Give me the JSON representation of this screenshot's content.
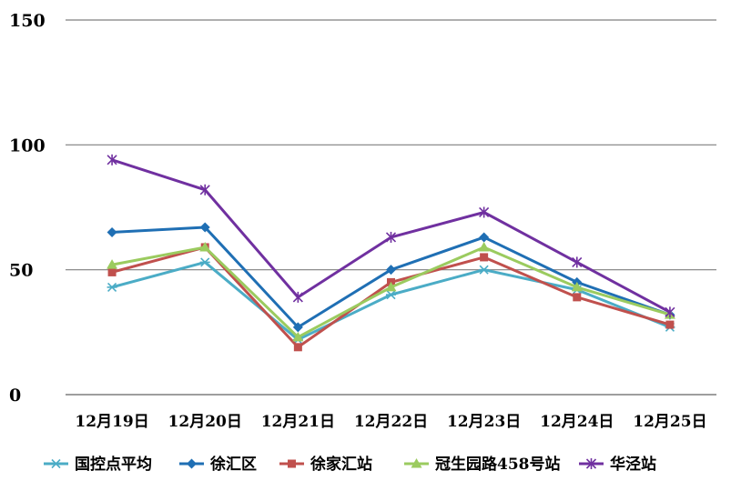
{
  "chart_data": {
    "type": "line",
    "title": "",
    "xlabel": "",
    "ylabel": "",
    "ylim": [
      0,
      150
    ],
    "yticks": [
      0,
      50,
      100,
      150
    ],
    "grid": true,
    "legend_position": "bottom",
    "categories": [
      "12月19日",
      "12月20日",
      "12月21日",
      "12月22日",
      "12月23日",
      "12月24日",
      "12月25日"
    ],
    "series": [
      {
        "name": "国控点平均",
        "color": "#4bacc6",
        "marker": "star",
        "values": [
          43,
          53,
          22,
          40,
          50,
          42,
          27
        ]
      },
      {
        "name": "徐汇区",
        "color": "#1f6fb4",
        "marker": "diamond",
        "values": [
          65,
          67,
          27,
          50,
          63,
          45,
          32
        ]
      },
      {
        "name": "徐家汇站",
        "color": "#c0504d",
        "marker": "square",
        "values": [
          49,
          59,
          19,
          45,
          55,
          39,
          28
        ]
      },
      {
        "name": "冠生园路458号站",
        "color": "#9bcb5f",
        "marker": "triangle",
        "values": [
          52,
          59,
          23,
          43,
          59,
          43,
          32
        ]
      },
      {
        "name": "华泾站",
        "color": "#7030a0",
        "marker": "asterisk",
        "values": [
          94,
          82,
          39,
          63,
          73,
          53,
          33
        ]
      }
    ]
  }
}
